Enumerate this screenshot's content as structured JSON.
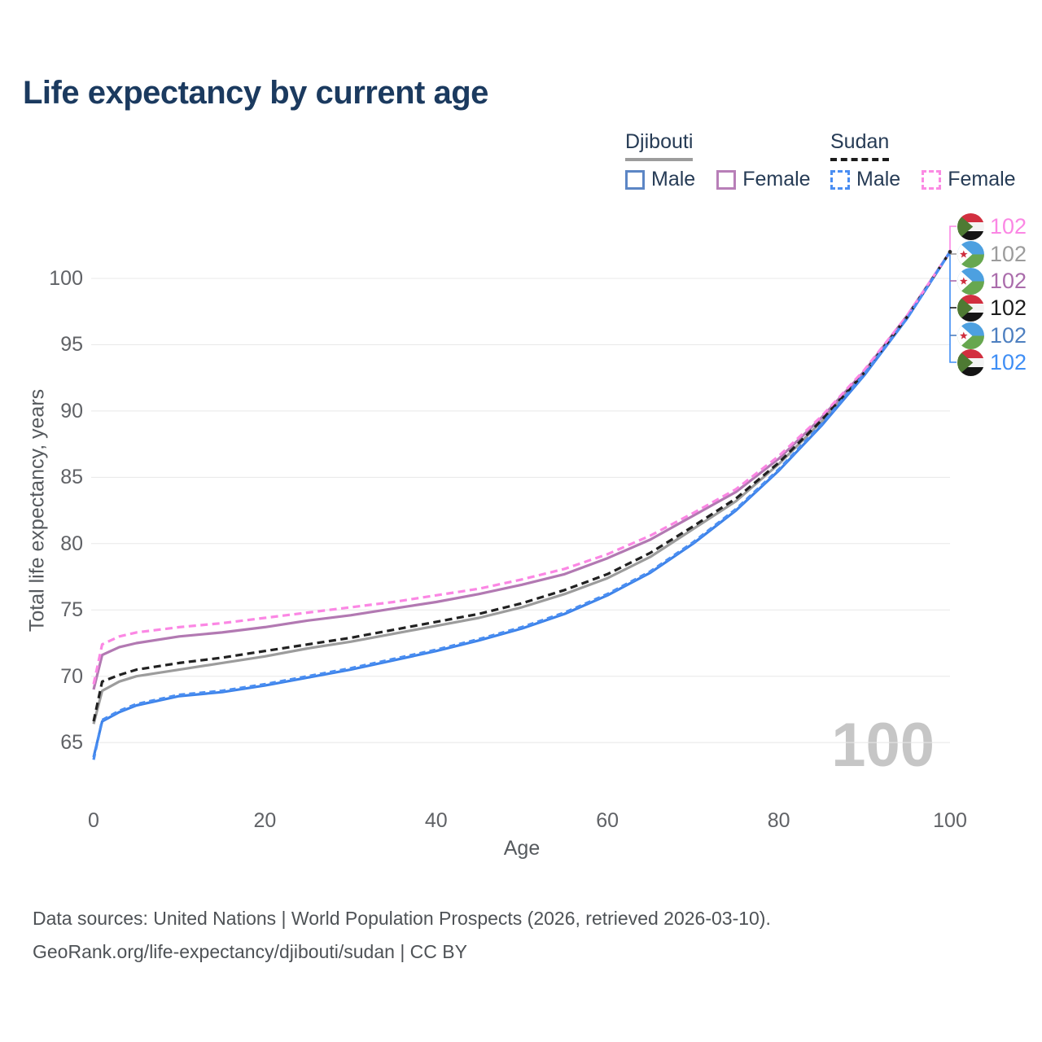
{
  "title": "Life expectancy by current age",
  "watermark": "100",
  "legend": {
    "groups": [
      {
        "country": "Djibouti",
        "line_style": "solid",
        "underline_color": "#9c9c9c",
        "items": [
          {
            "label": "Male",
            "color": "#5c86c5"
          },
          {
            "label": "Female",
            "color": "#b87fb8"
          }
        ]
      },
      {
        "country": "Sudan",
        "line_style": "dashed",
        "underline_color": "#1c1c1c",
        "items": [
          {
            "label": "Male",
            "color": "#4a8ef2"
          },
          {
            "label": "Female",
            "color": "#fb8ae3"
          }
        ]
      }
    ]
  },
  "chart_data": {
    "type": "line",
    "title": "Life expectancy by current age",
    "xlabel": "Age",
    "ylabel": "Total life expectancy, years",
    "xlim": [
      0,
      100
    ],
    "ylim": [
      63,
      103
    ],
    "xticks": [
      0,
      20,
      40,
      60,
      80,
      100
    ],
    "yticks": [
      65,
      70,
      75,
      80,
      85,
      90,
      95,
      100
    ],
    "grid": "horizontal",
    "x": [
      0,
      1,
      3,
      5,
      10,
      15,
      20,
      25,
      30,
      35,
      40,
      45,
      50,
      55,
      60,
      65,
      70,
      75,
      80,
      85,
      90,
      95,
      100
    ],
    "series": [
      {
        "name": "Djibouti Total",
        "country": "Djibouti",
        "sex": "Total",
        "dash": "solid",
        "color": "#9c9c9c",
        "values": [
          66.4,
          68.9,
          69.6,
          70.0,
          70.5,
          71.0,
          71.5,
          72.1,
          72.6,
          73.2,
          73.8,
          74.4,
          75.2,
          76.2,
          77.4,
          79.0,
          81.1,
          83.2,
          86.0,
          89.2,
          92.9,
          97.1,
          102
        ]
      },
      {
        "name": "Djibouti Female",
        "country": "Djibouti",
        "sex": "Female",
        "dash": "solid",
        "color": "#b279b2",
        "values": [
          69.0,
          71.6,
          72.2,
          72.5,
          73.0,
          73.3,
          73.7,
          74.2,
          74.6,
          75.1,
          75.6,
          76.2,
          76.9,
          77.7,
          78.9,
          80.3,
          82.1,
          83.9,
          86.4,
          89.5,
          93.0,
          97.2,
          102
        ]
      },
      {
        "name": "Djibouti Male",
        "country": "Djibouti",
        "sex": "Male",
        "dash": "solid",
        "color": "#3d82e8",
        "values": [
          63.9,
          66.6,
          67.3,
          67.8,
          68.5,
          68.8,
          69.3,
          69.9,
          70.5,
          71.2,
          71.9,
          72.7,
          73.6,
          74.7,
          76.1,
          77.8,
          80.0,
          82.5,
          85.5,
          88.9,
          92.7,
          97.0,
          102
        ]
      },
      {
        "name": "Sudan Total",
        "country": "Sudan",
        "sex": "Total",
        "dash": "dashed",
        "color": "#212121",
        "values": [
          66.6,
          69.6,
          70.1,
          70.5,
          71.0,
          71.4,
          71.9,
          72.4,
          72.9,
          73.5,
          74.1,
          74.7,
          75.5,
          76.5,
          77.7,
          79.3,
          81.3,
          83.4,
          86.1,
          89.3,
          92.9,
          97.1,
          102
        ]
      },
      {
        "name": "Sudan Female",
        "country": "Sudan",
        "sex": "Female",
        "dash": "dashed",
        "color": "#fb87e4",
        "values": [
          69.4,
          72.4,
          73.0,
          73.3,
          73.7,
          74.0,
          74.4,
          74.8,
          75.2,
          75.6,
          76.1,
          76.6,
          77.3,
          78.1,
          79.2,
          80.6,
          82.3,
          84.1,
          86.6,
          89.6,
          93.1,
          97.2,
          102
        ]
      },
      {
        "name": "Sudan Male",
        "country": "Sudan",
        "sex": "Male",
        "dash": "dashed",
        "color": "#4a8ef2",
        "values": [
          63.7,
          66.7,
          67.4,
          67.9,
          68.6,
          68.9,
          69.4,
          70.0,
          70.6,
          71.3,
          72.0,
          72.8,
          73.7,
          74.8,
          76.2,
          77.9,
          80.1,
          82.6,
          85.6,
          89.0,
          92.8,
          97.0,
          102
        ]
      }
    ],
    "end_labels": [
      {
        "flag": "sudan",
        "series": "Sudan Female",
        "value": "102",
        "color": "#fb87e4"
      },
      {
        "flag": "djibouti",
        "series": "Djibouti Total",
        "value": "102",
        "color": "#9c9c9c"
      },
      {
        "flag": "djibouti",
        "series": "Djibouti Female",
        "value": "102",
        "color": "#aa6cab"
      },
      {
        "flag": "sudan",
        "series": "Sudan Total",
        "value": "102",
        "color": "#1c1c1c"
      },
      {
        "flag": "djibouti",
        "series": "Djibouti Male",
        "value": "102",
        "color": "#4d7fc0"
      },
      {
        "flag": "sudan",
        "series": "Sudan Male",
        "value": "102",
        "color": "#3f8ef5"
      }
    ]
  },
  "footer": {
    "line1": "Data sources: United Nations | World Population Prospects (2026, retrieved 2026-03-10).",
    "line2": "GeoRank.org/life-expectancy/djibouti/sudan | CC BY"
  }
}
